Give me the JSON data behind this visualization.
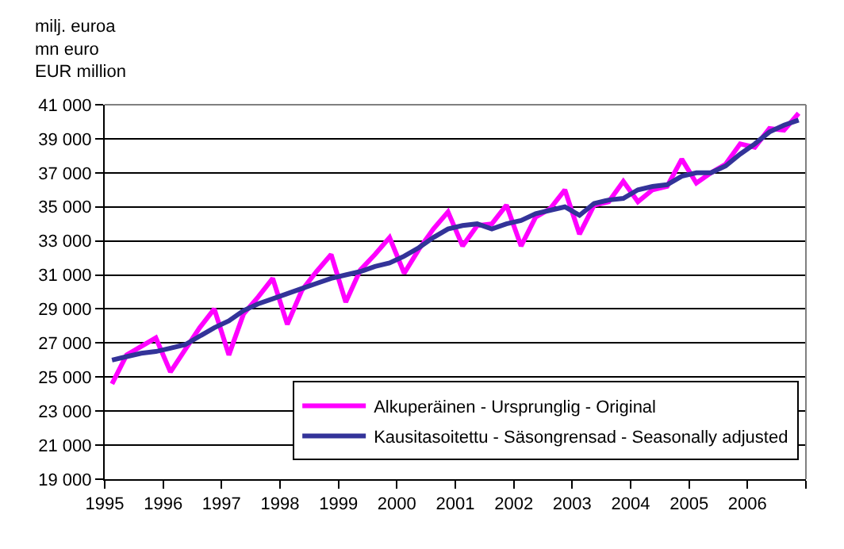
{
  "chart_data": {
    "type": "line",
    "ylabel": "milj. euroa\nmn euro\nEUR million",
    "x": [
      1995.125,
      1995.375,
      1995.625,
      1995.875,
      1996.125,
      1996.375,
      1996.625,
      1996.875,
      1997.125,
      1997.375,
      1997.625,
      1997.875,
      1998.125,
      1998.375,
      1998.625,
      1998.875,
      1999.125,
      1999.375,
      1999.625,
      1999.875,
      2000.125,
      2000.375,
      2000.625,
      2000.875,
      2001.125,
      2001.375,
      2001.625,
      2001.875,
      2002.125,
      2002.375,
      2002.625,
      2002.875,
      2003.125,
      2003.375,
      2003.625,
      2003.875,
      2004.125,
      2004.375,
      2004.625,
      2004.875,
      2005.125,
      2005.375,
      2005.625,
      2005.875,
      2006.125,
      2006.375,
      2006.625,
      2006.875
    ],
    "series": [
      {
        "name": "Alkuperäinen - Ursprunglig - Original",
        "color": "#ff00ff",
        "values": [
          24600,
          26300,
          26800,
          27300,
          25300,
          26600,
          27900,
          29000,
          26300,
          28700,
          29700,
          30800,
          28100,
          30100,
          31200,
          32200,
          29400,
          31300,
          32200,
          33200,
          31100,
          32500,
          33700,
          34700,
          32700,
          33900,
          34000,
          35100,
          32700,
          34400,
          34900,
          36000,
          33400,
          35100,
          35300,
          36500,
          35300,
          36000,
          36200,
          37800,
          36400,
          37000,
          37500,
          38700,
          38500,
          39600,
          39500,
          40500
        ]
      },
      {
        "name": "Kausitasoitettu - Säsongrensad - Seasonally adjusted",
        "color": "#333399",
        "values": [
          26000,
          26200,
          26400,
          26500,
          26700,
          26900,
          27400,
          27900,
          28300,
          28900,
          29300,
          29600,
          29900,
          30200,
          30500,
          30800,
          31000,
          31200,
          31500,
          31700,
          32100,
          32600,
          33200,
          33700,
          33900,
          34000,
          33700,
          34000,
          34200,
          34600,
          34800,
          35000,
          34500,
          35200,
          35400,
          35500,
          36000,
          36200,
          36300,
          36800,
          37000,
          37000,
          37400,
          38100,
          38700,
          39400,
          39800,
          40100
        ]
      }
    ],
    "xlim": [
      1995,
      2007
    ],
    "xticks": [
      1995,
      1996,
      1997,
      1998,
      1999,
      2000,
      2001,
      2002,
      2003,
      2004,
      2005,
      2006,
      {
        "value": 2007,
        "label": null
      }
    ],
    "ylim": [
      19000,
      41000
    ],
    "yticks": [
      {
        "value": 19000,
        "label": "19 000"
      },
      {
        "value": 21000,
        "label": "21 000"
      },
      {
        "value": 23000,
        "label": "23 000"
      },
      {
        "value": 25000,
        "label": "25 000"
      },
      {
        "value": 27000,
        "label": "27 000"
      },
      {
        "value": 29000,
        "label": "29 000"
      },
      {
        "value": 31000,
        "label": "31 000"
      },
      {
        "value": 33000,
        "label": "33 000"
      },
      {
        "value": 35000,
        "label": "35 000"
      },
      {
        "value": 37000,
        "label": "37 000"
      },
      {
        "value": 39000,
        "label": "39 000"
      },
      {
        "value": 41000,
        "label": "41 000"
      }
    ],
    "grid": "y",
    "legend": "bottom right",
    "marker": "none",
    "line_style": "solid"
  }
}
